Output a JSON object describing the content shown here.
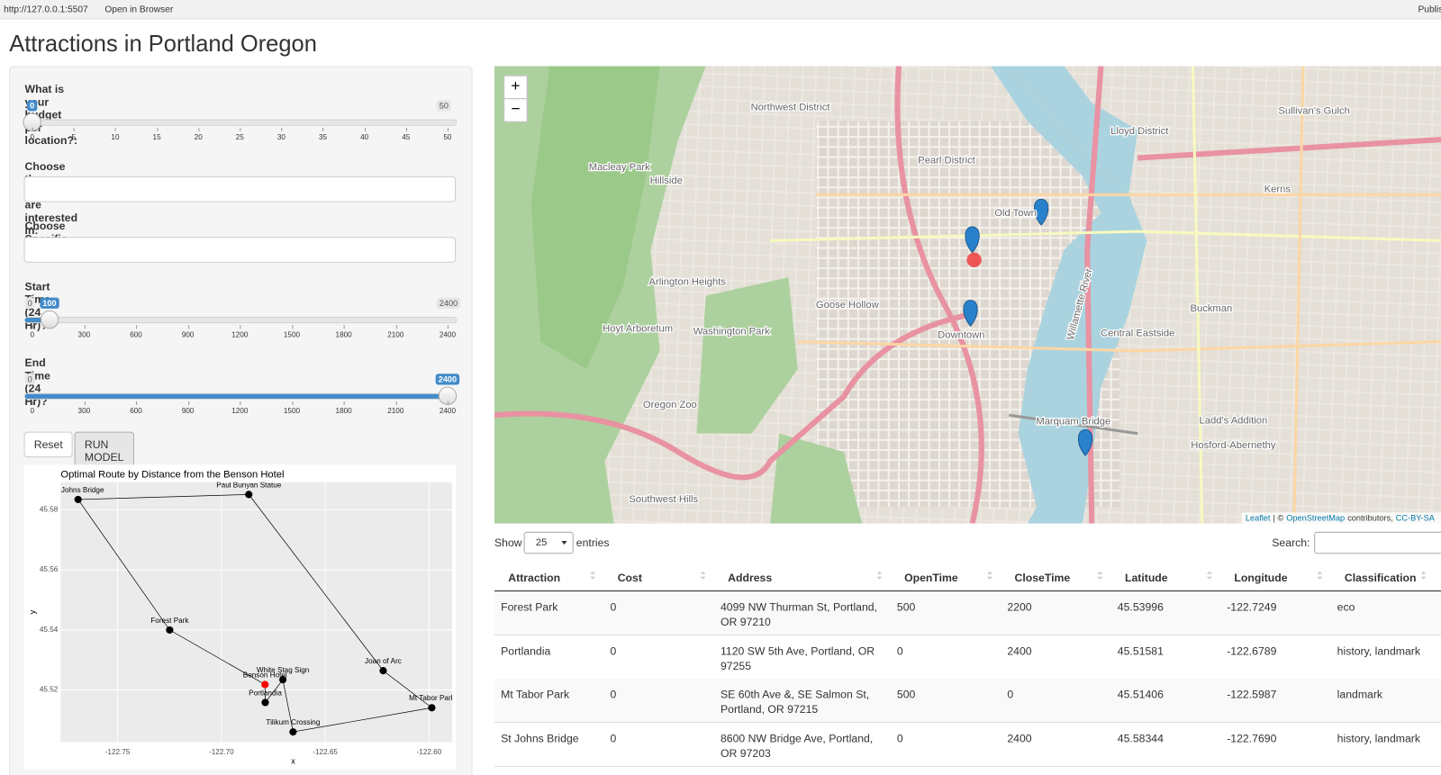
{
  "browser": {
    "url": "http://127.0.0.1:5507",
    "open_in_browser": "Open in Browser",
    "publish": "Publish"
  },
  "title": "Attractions in Portland Oregon",
  "sidebar": {
    "budget": {
      "label": "What is your budget per location?:",
      "min": 0,
      "max": 50,
      "value": 0,
      "ticks": [
        0,
        5,
        10,
        15,
        20,
        25,
        30,
        35,
        40,
        45,
        50
      ]
    },
    "areas": {
      "label": "Choose the areas that you are interested in:"
    },
    "locations": {
      "label": "Choose Specific Locations:"
    },
    "start_time": {
      "label": "Start Time (24 Hr)?",
      "min": 0,
      "max": 2400,
      "value": 100,
      "ticks": [
        0,
        300,
        600,
        900,
        1200,
        1500,
        1800,
        2100,
        2400
      ]
    },
    "end_time": {
      "label": "End Time (24 Hr)?",
      "min": 0,
      "max": 2400,
      "value": 2400,
      "ticks": [
        0,
        300,
        600,
        900,
        1200,
        1500,
        1800,
        2100,
        2400
      ]
    },
    "buttons": [
      "Reset",
      "RUN MODEL"
    ]
  },
  "chart_data": {
    "type": "scatter",
    "title": "Optimal Route by Distance from the Benson Hotel",
    "x_label": "x",
    "y_label": "y",
    "xlim": [
      -122.7774,
      -122.5889
    ],
    "ylim": [
      45.5026,
      45.5892
    ],
    "xticks": [
      {
        "value": -122.75,
        "label": "-122.75"
      },
      {
        "value": -122.7,
        "label": "-122.70"
      },
      {
        "value": -122.65,
        "label": "-122.65"
      },
      {
        "value": -122.6,
        "label": "-122.60"
      }
    ],
    "yticks": [
      45.52,
      45.54,
      45.56,
      45.58
    ],
    "grid": true,
    "labels": [
      "Benson Hotel",
      "Portlandia",
      "White Stag Sign",
      "Tilikum Crossing",
      "Mt Tabor Park",
      "Joan of Arc",
      "Paul Bunyan Statue",
      "St Johns Bridge",
      "Forest Park"
    ],
    "x": [
      -122.679,
      -122.6789,
      -122.6704,
      -122.6655,
      -122.5987,
      -122.6221,
      -122.6868,
      -122.769,
      -122.7249
    ],
    "y": [
      45.5218,
      45.51581,
      45.5234,
      45.506,
      45.51406,
      45.5264,
      45.5851,
      45.58344,
      45.53996
    ],
    "colors": [
      "#ff0000",
      "#000000",
      "#000000",
      "#000000",
      "#000000",
      "#000000",
      "#000000",
      "#000000",
      "#000000"
    ],
    "line_color": "#000000"
  },
  "map": {
    "zoom_in": "+",
    "zoom_out": "−",
    "attribution": [
      "Leaflet",
      "| ©",
      "OpenStreetMap",
      "contributors,",
      "CC-BY-SA"
    ],
    "labels": [
      "Northwest District",
      "Pearl District",
      "Lloyd District",
      "Sullivan's Gulch",
      "Hillside",
      "Arlington Heights",
      "Goose Hollow",
      "Downtown",
      "Buckman",
      "Kerns",
      "Central Eastside",
      "Hosford-Abernethy",
      "Ladd's Addition",
      "Southwest Hills",
      "Macleay Park",
      "Washington Park",
      "Hoyt Arboretum",
      "Oregon Zoo",
      "Old Town",
      "Marquam Bridge",
      "Willamette River"
    ]
  },
  "table": {
    "show": "Show",
    "length": "25",
    "entries": "entries",
    "search": "Search:",
    "headers": [
      "Attraction",
      "Cost",
      "Address",
      "OpenTime",
      "CloseTime",
      "Latitude",
      "Longitude",
      "Classification"
    ],
    "rows": [
      [
        "Forest Park",
        "0",
        "4099 NW Thurman St, Portland, OR 97210",
        "500",
        "2200",
        "45.53996",
        "-122.7249",
        "eco"
      ],
      [
        "Portlandia",
        "0",
        "1120 SW 5th Ave, Portland, OR 97255",
        "0",
        "2400",
        "45.51581",
        "-122.6789",
        "history, landmark"
      ],
      [
        "Mt Tabor Park",
        "0",
        "SE 60th Ave &, SE Salmon St, Portland, OR 97215",
        "500",
        "0",
        "45.51406",
        "-122.5987",
        "landmark"
      ],
      [
        "St Johns Bridge",
        "0",
        "8600 NW Bridge Ave, Portland, OR 97203",
        "0",
        "2400",
        "45.58344",
        "-122.7690",
        "history, landmark"
      ]
    ]
  }
}
